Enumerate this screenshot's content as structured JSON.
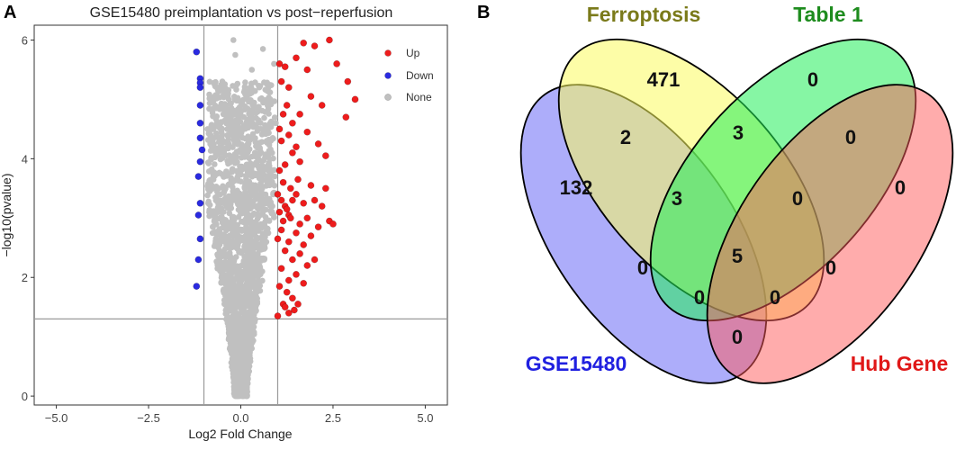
{
  "panels": {
    "a_label": "A",
    "b_label": "B"
  },
  "chart_data": [
    {
      "type": "scatter",
      "title": "GSE15480 preimplantation vs post−reperfusion",
      "xlabel": "Log2 Fold Change",
      "ylabel": "−log10(pvalue)",
      "xlim": [
        -5.6,
        5.6
      ],
      "ylim": [
        -0.15,
        6.25
      ],
      "xticks": [
        -5.0,
        -2.5,
        0.0,
        2.5,
        5.0
      ],
      "xtick_labels": [
        "−5.0",
        "−2.5",
        "0.0",
        "2.5",
        "5.0"
      ],
      "yticks": [
        0,
        2,
        4,
        6
      ],
      "ytick_labels": [
        "0",
        "2",
        "4",
        "6"
      ],
      "thresholds": {
        "log2fc": [
          -1,
          1
        ],
        "neg_log10_p": 1.3
      },
      "legend": {
        "position": "top-right",
        "entries": [
          {
            "name": "Up",
            "color": "#ee1c1c"
          },
          {
            "name": "Down",
            "color": "#2a2ae0"
          },
          {
            "name": "None",
            "color": "#c0c0c0"
          }
        ]
      },
      "series": [
        {
          "name": "Up",
          "color": "#ee1c1c",
          "points": [
            [
              1.05,
              5.6
            ],
            [
              1.1,
              5.3
            ],
            [
              1.2,
              5.55
            ],
            [
              1.3,
              5.2
            ],
            [
              1.5,
              5.7
            ],
            [
              1.7,
              5.95
            ],
            [
              1.8,
              5.5
            ],
            [
              2.0,
              5.9
            ],
            [
              2.4,
              6.0
            ],
            [
              2.6,
              5.6
            ],
            [
              2.9,
              5.3
            ],
            [
              3.1,
              5.0
            ],
            [
              2.85,
              4.7
            ],
            [
              2.2,
              4.9
            ],
            [
              1.9,
              5.05
            ],
            [
              1.6,
              4.75
            ],
            [
              1.4,
              4.6
            ],
            [
              1.25,
              4.9
            ],
            [
              1.15,
              4.75
            ],
            [
              1.05,
              4.5
            ],
            [
              1.1,
              4.3
            ],
            [
              1.3,
              4.4
            ],
            [
              1.5,
              4.2
            ],
            [
              1.8,
              4.45
            ],
            [
              2.1,
              4.25
            ],
            [
              2.3,
              4.05
            ],
            [
              1.6,
              3.95
            ],
            [
              1.4,
              4.1
            ],
            [
              1.2,
              3.9
            ],
            [
              1.05,
              3.8
            ],
            [
              1.15,
              3.6
            ],
            [
              1.35,
              3.5
            ],
            [
              1.55,
              3.65
            ],
            [
              1.9,
              3.55
            ],
            [
              2.3,
              3.5
            ],
            [
              1.0,
              3.4
            ],
            [
              1.1,
              3.3
            ],
            [
              1.2,
              3.2
            ],
            [
              1.3,
              3.05
            ],
            [
              1.4,
              3.3
            ],
            [
              1.5,
              3.4
            ],
            [
              1.7,
              3.25
            ],
            [
              2.0,
              3.3
            ],
            [
              2.2,
              3.2
            ],
            [
              1.05,
              3.1
            ],
            [
              1.15,
              2.95
            ],
            [
              1.25,
              3.15
            ],
            [
              1.35,
              3.0
            ],
            [
              1.6,
              2.9
            ],
            [
              1.8,
              3.0
            ],
            [
              2.1,
              2.85
            ],
            [
              2.4,
              2.95
            ],
            [
              2.5,
              2.9
            ],
            [
              1.1,
              2.8
            ],
            [
              1.3,
              2.6
            ],
            [
              1.5,
              2.75
            ],
            [
              1.7,
              2.55
            ],
            [
              1.9,
              2.7
            ],
            [
              1.0,
              2.65
            ],
            [
              1.2,
              2.45
            ],
            [
              1.4,
              2.3
            ],
            [
              1.6,
              2.4
            ],
            [
              1.8,
              2.2
            ],
            [
              2.0,
              2.3
            ],
            [
              1.1,
              2.15
            ],
            [
              1.3,
              1.95
            ],
            [
              1.5,
              2.05
            ],
            [
              1.7,
              1.9
            ],
            [
              1.05,
              1.85
            ],
            [
              1.25,
              1.75
            ],
            [
              1.4,
              1.65
            ],
            [
              1.55,
              1.55
            ],
            [
              1.15,
              1.55
            ],
            [
              1.3,
              1.4
            ],
            [
              1.0,
              1.35
            ],
            [
              1.2,
              1.5
            ],
            [
              1.45,
              1.45
            ]
          ]
        },
        {
          "name": "Down",
          "color": "#2a2ae0",
          "points": [
            [
              -1.2,
              5.8
            ],
            [
              -1.1,
              5.35
            ],
            [
              -1.1,
              5.28
            ],
            [
              -1.1,
              5.2
            ],
            [
              -1.1,
              4.9
            ],
            [
              -1.1,
              4.6
            ],
            [
              -1.1,
              4.35
            ],
            [
              -1.05,
              4.15
            ],
            [
              -1.1,
              3.95
            ],
            [
              -1.15,
              3.7
            ],
            [
              -1.1,
              3.25
            ],
            [
              -1.15,
              3.05
            ],
            [
              -1.1,
              2.65
            ],
            [
              -1.15,
              2.3
            ],
            [
              -1.2,
              1.85
            ]
          ]
        }
      ]
    },
    {
      "type": "venn",
      "sets": [
        {
          "name": "GSE15480",
          "color": "#2020e0"
        },
        {
          "name": "Ferroptosis",
          "color": "#7a7a1a"
        },
        {
          "name": "Table 1",
          "color": "#1e8c1e"
        },
        {
          "name": "Hub Gene",
          "color": "#e01818"
        }
      ],
      "regions": [
        {
          "sets": [
            "GSE15480"
          ],
          "count": "132"
        },
        {
          "sets": [
            "Ferroptosis"
          ],
          "count": "471"
        },
        {
          "sets": [
            "Table 1"
          ],
          "count": "0"
        },
        {
          "sets": [
            "Hub Gene"
          ],
          "count": "0"
        },
        {
          "sets": [
            "GSE15480",
            "Ferroptosis"
          ],
          "count": "2"
        },
        {
          "sets": [
            "Ferroptosis",
            "Table 1"
          ],
          "count": "3"
        },
        {
          "sets": [
            "Table 1",
            "Hub Gene"
          ],
          "count": "0"
        },
        {
          "sets": [
            "GSE15480",
            "Ferroptosis",
            "Table 1"
          ],
          "count": "3"
        },
        {
          "sets": [
            "Ferroptosis",
            "Table 1",
            "Hub Gene"
          ],
          "count": "0"
        },
        {
          "sets": [
            "GSE15480",
            "Ferroptosis",
            "Table 1",
            "Hub Gene"
          ],
          "count": "5"
        },
        {
          "sets": [
            "GSE15480",
            "Table 1"
          ],
          "count": "0"
        },
        {
          "sets": [
            "Ferroptosis",
            "Hub Gene"
          ],
          "count": "0"
        },
        {
          "sets": [
            "GSE15480",
            "Table 1",
            "Hub Gene"
          ],
          "count": "0"
        },
        {
          "sets": [
            "GSE15480",
            "Ferroptosis",
            "Hub Gene"
          ],
          "count": "0"
        },
        {
          "sets": [
            "GSE15480",
            "Hub Gene"
          ],
          "count": "0"
        }
      ]
    }
  ]
}
